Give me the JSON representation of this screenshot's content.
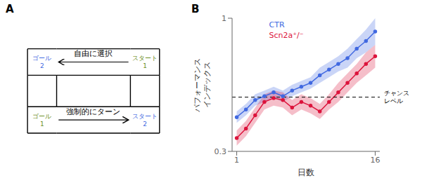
{
  "chart_data": [
    {
      "type": "diagram",
      "title": "A",
      "annotations": [
        {
          "text": "ゴール\n2",
          "color": "#4169e1"
        },
        {
          "text": "スタート\n1",
          "color": "#6b8e23"
        },
        {
          "text": "ゴール\n1",
          "color": "#6b8e23"
        },
        {
          "text": "スタート\n2",
          "color": "#4169e1"
        },
        {
          "text": "自由に選択"
        },
        {
          "text": "強制的にターン"
        }
      ]
    },
    {
      "type": "line",
      "title": "B",
      "x_label": "日数",
      "y_label": "パフォーマンス\nインデックス",
      "x": [
        1,
        2,
        3,
        4,
        5,
        6,
        7,
        8,
        9,
        10,
        11,
        12,
        13,
        14,
        15,
        16
      ],
      "xlim": [
        0.5,
        16.5
      ],
      "xticks": [
        1,
        16
      ],
      "ylim": [
        0.3,
        1.0
      ],
      "yticks": [
        0.3,
        1
      ],
      "grid": false,
      "legend": "upper left",
      "series": [
        {
          "name": "CTR",
          "color": "#4169e1",
          "marker": "circle",
          "values": [
            0.48,
            0.52,
            0.57,
            0.59,
            0.61,
            0.59,
            0.62,
            0.64,
            0.66,
            0.7,
            0.73,
            0.76,
            0.79,
            0.84,
            0.88,
            0.93
          ],
          "error": [
            0.03,
            0.03,
            0.03,
            0.03,
            0.03,
            0.03,
            0.03,
            0.03,
            0.03,
            0.04,
            0.04,
            0.04,
            0.05,
            0.05,
            0.06,
            0.07
          ]
        },
        {
          "name": "Scn2a⁺/⁻",
          "color": "#dc143c",
          "marker": "circle",
          "values": [
            0.37,
            0.42,
            0.49,
            0.56,
            0.58,
            0.57,
            0.53,
            0.56,
            0.54,
            0.51,
            0.56,
            0.61,
            0.66,
            0.71,
            0.76,
            0.8
          ],
          "error": [
            0.04,
            0.04,
            0.04,
            0.04,
            0.04,
            0.04,
            0.04,
            0.04,
            0.04,
            0.04,
            0.04,
            0.05,
            0.05,
            0.05,
            0.06,
            0.06
          ]
        }
      ],
      "reference_lines": [
        {
          "y": 0.585,
          "label": "チャンス\nレベル",
          "line_style": "dashed"
        }
      ]
    }
  ]
}
